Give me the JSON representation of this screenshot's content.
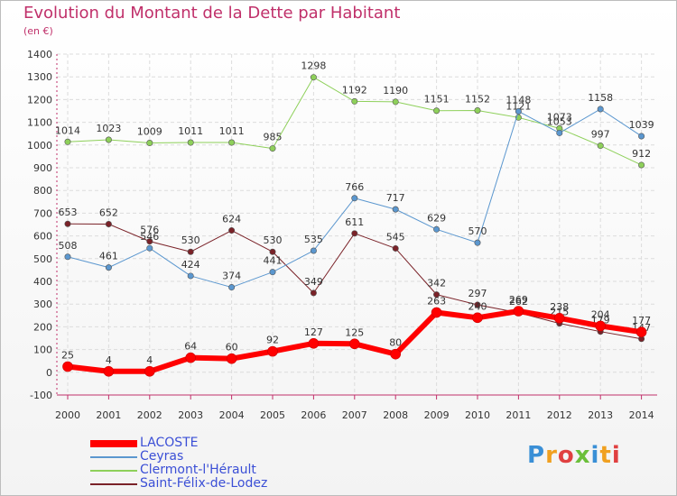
{
  "title": "Evolution du Montant de la Dette par Habitant",
  "unit": "(en €)",
  "logo": {
    "text": "Proxiti",
    "colors": [
      "#3a8fd6",
      "#f0a020",
      "#e04040",
      "#6bbf3a"
    ]
  },
  "chart_data": {
    "type": "line",
    "categories": [
      "2000",
      "2001",
      "2002",
      "2003",
      "2004",
      "2005",
      "2006",
      "2007",
      "2008",
      "2009",
      "2010",
      "2011",
      "2012",
      "2013",
      "2014"
    ],
    "ylim": [
      -100,
      1400
    ],
    "yticks": [
      -100,
      0,
      100,
      200,
      300,
      400,
      500,
      600,
      700,
      800,
      900,
      1000,
      1100,
      1200,
      1300,
      1400
    ],
    "grid": true,
    "legend_position": "bottom-left",
    "series": [
      {
        "name": "Saint-Félix-de-Lodez",
        "color": "#7a2228",
        "width": 1,
        "values": [
          653,
          652,
          576,
          530,
          624,
          530,
          349,
          611,
          545,
          342,
          297,
          262,
          215,
          179,
          147
        ]
      },
      {
        "name": "Clermont-l'Hérault",
        "color": "#8ed05a",
        "width": 1,
        "values": [
          1014,
          1023,
          1009,
          1011,
          1011,
          985,
          1298,
          1192,
          1190,
          1151,
          1152,
          1121,
          1073,
          997,
          912
        ]
      },
      {
        "name": "Ceyras",
        "color": "#5b97cf",
        "width": 1,
        "values": [
          508,
          461,
          546,
          424,
          374,
          441,
          535,
          766,
          717,
          629,
          570,
          1148,
          1053,
          1158,
          1039
        ]
      },
      {
        "name": "LACOSTE",
        "color": "#ff0000",
        "width": 6,
        "values": [
          25,
          4,
          4,
          64,
          60,
          92,
          127,
          125,
          80,
          263,
          240,
          269,
          238,
          204,
          177
        ]
      }
    ],
    "legend": [
      "LACOSTE",
      "Ceyras",
      "Clermont-l'Hérault",
      "Saint-Félix-de-Lodez"
    ]
  }
}
